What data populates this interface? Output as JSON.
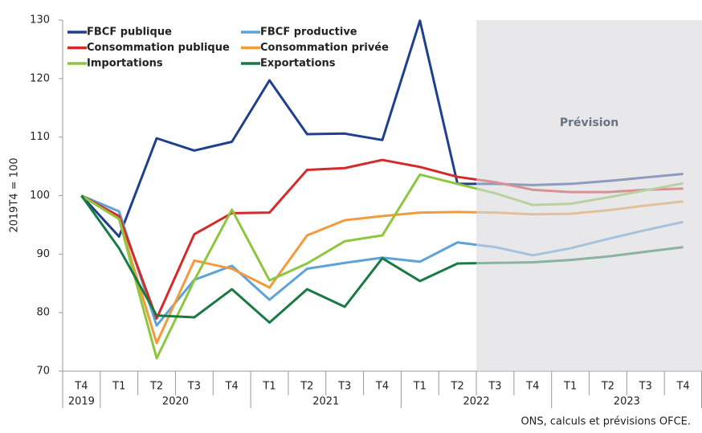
{
  "chart_data": {
    "type": "line",
    "y_axis_label": "2019T4 = 100",
    "categories": [
      "T4",
      "T1",
      "T2",
      "T3",
      "T4",
      "T1",
      "T2",
      "T3",
      "T4",
      "T1",
      "T2",
      "T3",
      "T4",
      "T1",
      "T2",
      "T3",
      "T4"
    ],
    "years": [
      "2019",
      "2020",
      "2020",
      "2020",
      "2020",
      "2021",
      "2021",
      "2021",
      "2021",
      "2022",
      "2022",
      "2022",
      "2022",
      "2023",
      "2023",
      "2023",
      "2023"
    ],
    "forecast_label": "Prévision",
    "forecast_from": 11,
    "ylim": [
      70,
      130
    ],
    "yticks": [
      70,
      80,
      90,
      100,
      110,
      120,
      130
    ],
    "series": [
      {
        "name": "FBCF publique",
        "color": "#1f3f8f",
        "values": [
          100,
          93,
          109.8,
          107.7,
          109.2,
          119.7,
          110.5,
          110.6,
          109.5,
          129.9,
          102,
          102,
          101.8,
          102,
          102.5,
          103.1,
          103.7
        ]
      },
      {
        "name": "FBCF productive",
        "color": "#5ba3d9",
        "values": [
          100,
          97.3,
          77.8,
          85.6,
          88,
          82.2,
          87.5,
          88.5,
          89.4,
          88.7,
          92,
          91.2,
          89.8,
          91,
          92.6,
          94.1,
          95.5
        ]
      },
      {
        "name": "Consommation publique",
        "color": "#d42a2a",
        "values": [
          100,
          96.5,
          79,
          93.4,
          97,
          97.1,
          104.4,
          104.7,
          106.1,
          104.9,
          103.2,
          102.3,
          101,
          100.6,
          100.6,
          101,
          101.2
        ]
      },
      {
        "name": "Consommation privée",
        "color": "#f39b3c",
        "values": [
          100,
          96,
          74.8,
          88.9,
          87.5,
          84.3,
          93.2,
          95.8,
          96.5,
          97.1,
          97.2,
          97.1,
          96.8,
          96.9,
          97.5,
          98.3,
          99
        ]
      },
      {
        "name": "Importations",
        "color": "#8dc63f",
        "values": [
          100,
          96,
          72.2,
          85.5,
          97.6,
          85.5,
          88.4,
          92.2,
          93.2,
          103.6,
          102,
          100.4,
          98.4,
          98.6,
          99.7,
          100.9,
          102.1
        ]
      },
      {
        "name": "Exportations",
        "color": "#1a7a45",
        "values": [
          100,
          91,
          79.5,
          79.2,
          84,
          78.3,
          84,
          81,
          89.3,
          85.4,
          88.4,
          88.5,
          88.6,
          89,
          89.6,
          90.4,
          91.2
        ]
      }
    ],
    "source": "ONS, calculs et prévisions OFCE."
  }
}
